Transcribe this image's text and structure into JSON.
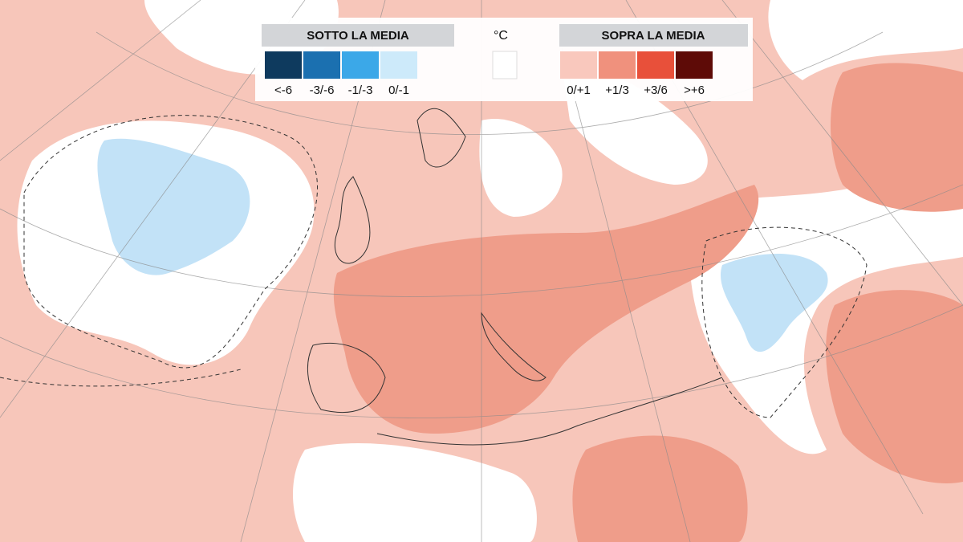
{
  "legend": {
    "below": {
      "title": "SOTTO LA MEDIA",
      "items": [
        {
          "label": "<-6",
          "color": "#0e3a5e"
        },
        {
          "label": "-3/-6",
          "color": "#1b70b0"
        },
        {
          "label": "-1/-3",
          "color": "#3ba8e8"
        },
        {
          "label": "0/-1",
          "color": "#cdeafa"
        }
      ]
    },
    "unit": {
      "label": "°C",
      "color": "#ffffff"
    },
    "above": {
      "title": "SOPRA LA MEDIA",
      "items": [
        {
          "label": "0/+1",
          "color": "#f9c8bd"
        },
        {
          "label": "+1/3",
          "color": "#f0917d"
        },
        {
          "label": "+3/6",
          "color": "#e8503a"
        },
        {
          "label": ">+6",
          "color": "#5e0b07"
        }
      ]
    }
  }
}
